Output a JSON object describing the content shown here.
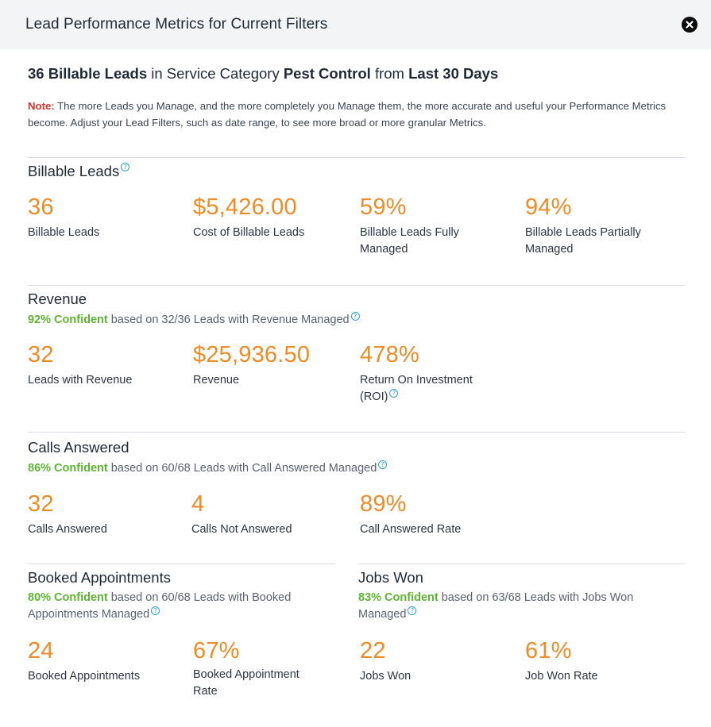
{
  "header": {
    "title": "Lead Performance Metrics for Current Filters",
    "close_icon": "close-icon"
  },
  "summary": {
    "count_text": "36 Billable Leads",
    "in_text": " in Service Category ",
    "category": "Pest Control",
    "from_text": " from ",
    "period": "Last 30 Days"
  },
  "note": {
    "label": "Note:",
    "text": " The more Leads you Manage, and the more completely you Manage them, the more accurate and useful your Performance Metrics become. Adjust your Lead Filters, such as date range, to see more broad or more granular Metrics."
  },
  "billable": {
    "title": "Billable Leads",
    "metrics": [
      {
        "value": "36",
        "label": "Billable Leads"
      },
      {
        "value": "$5,426.00",
        "label": "Cost of Billable Leads"
      },
      {
        "value": "59%",
        "label": "Billable Leads Fully Managed"
      },
      {
        "value": "94%",
        "label": "Billable Leads Partially Managed"
      }
    ]
  },
  "revenue": {
    "title": "Revenue",
    "confidence_pct": "92% Confident",
    "confidence_text": " based on 32/36 Leads with Revenue Managed",
    "metrics": [
      {
        "value": "32",
        "label": "Leads with Revenue"
      },
      {
        "value": "$25,936.50",
        "label": "Revenue"
      },
      {
        "value": "478%",
        "label": "Return On Investment (ROI)"
      }
    ]
  },
  "calls": {
    "title": "Calls Answered",
    "confidence_pct": "86% Confident",
    "confidence_text": " based on 60/68 Leads with Call Answered Managed",
    "metrics": [
      {
        "value": "32",
        "label": "Calls Answered"
      },
      {
        "value": "4",
        "label": "Calls Not Answered"
      },
      {
        "value": "89%",
        "label": "Call Answered Rate"
      }
    ]
  },
  "booked": {
    "title": "Booked Appointments",
    "confidence_pct": "80% Confident",
    "confidence_text": " based on 60/68 Leads with Booked Appointments Managed",
    "metrics": [
      {
        "value": "24",
        "label": "Booked Appointments"
      },
      {
        "value": "67%",
        "label": "Booked Appointment Rate"
      }
    ]
  },
  "jobs": {
    "title": "Jobs Won",
    "confidence_pct": "83% Confident",
    "confidence_text": " based on 63/68 Leads with Jobs Won Managed",
    "metrics": [
      {
        "value": "22",
        "label": "Jobs Won"
      },
      {
        "value": "61%",
        "label": "Job Won Rate"
      }
    ]
  },
  "colors": {
    "metric_value": "#f08a24",
    "confidence": "#5cb531",
    "note_label": "#d8342a",
    "help_icon": "#2b9fd8"
  }
}
